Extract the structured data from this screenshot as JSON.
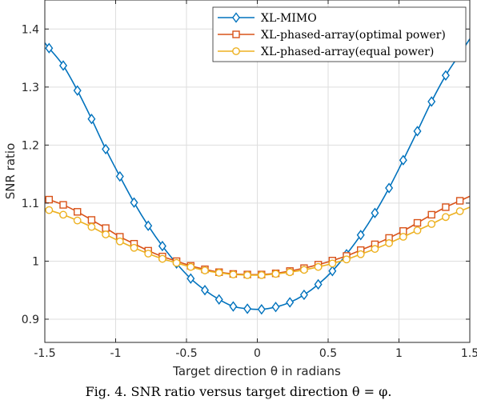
{
  "caption": "Fig. 4.  SNR ratio versus target direction θ = φ.",
  "chart_data": {
    "type": "line",
    "xlabel": "Target direction θ in radians",
    "ylabel": "SNR ratio",
    "xlim": [
      -1.5,
      1.5
    ],
    "ylim": [
      0.86,
      1.45
    ],
    "xticks": [
      -1.5,
      -1,
      -0.5,
      0,
      0.5,
      1,
      1.5
    ],
    "xtick_labels": [
      "-1.5",
      "-1",
      "-0.5",
      "0",
      "0.5",
      "1",
      "1.5"
    ],
    "yticks": [
      0.9,
      1,
      1.1,
      1.2,
      1.3,
      1.4
    ],
    "ytick_labels": [
      "0.9",
      "1",
      "1.1",
      "1.2",
      "1.3",
      "1.4"
    ],
    "grid": true,
    "legend_position": "top-right",
    "series": [
      {
        "name": "XL-MIMO",
        "color": "#0072BD",
        "marker": "diamond",
        "x": [
          -1.47,
          -1.37,
          -1.27,
          -1.17,
          -1.07,
          -0.97,
          -0.87,
          -0.77,
          -0.67,
          -0.57,
          -0.47,
          -0.37,
          -0.27,
          -0.17,
          -0.07,
          0.03,
          0.13,
          0.23,
          0.33,
          0.43,
          0.53,
          0.63,
          0.73,
          0.83,
          0.93,
          1.03,
          1.13,
          1.23,
          1.33,
          1.43
        ],
        "y": [
          1.367,
          1.337,
          1.294,
          1.245,
          1.193,
          1.146,
          1.101,
          1.061,
          1.026,
          0.996,
          0.97,
          0.95,
          0.934,
          0.922,
          0.918,
          0.917,
          0.921,
          0.929,
          0.942,
          0.96,
          0.983,
          1.012,
          1.045,
          1.083,
          1.126,
          1.174,
          1.224,
          1.275,
          1.32,
          1.357
        ]
      },
      {
        "name": "XL-phased-array(optimal power)",
        "color": "#D95319",
        "marker": "square",
        "x": [
          -1.47,
          -1.37,
          -1.27,
          -1.17,
          -1.07,
          -0.97,
          -0.87,
          -0.77,
          -0.67,
          -0.57,
          -0.47,
          -0.37,
          -0.27,
          -0.17,
          -0.07,
          0.03,
          0.13,
          0.23,
          0.33,
          0.43,
          0.53,
          0.63,
          0.73,
          0.83,
          0.93,
          1.03,
          1.13,
          1.23,
          1.33,
          1.43
        ],
        "y": [
          1.106,
          1.097,
          1.085,
          1.071,
          1.057,
          1.042,
          1.03,
          1.018,
          1.008,
          1.0,
          0.992,
          0.986,
          0.981,
          0.978,
          0.977,
          0.977,
          0.979,
          0.983,
          0.988,
          0.994,
          1.001,
          1.009,
          1.019,
          1.029,
          1.04,
          1.052,
          1.066,
          1.08,
          1.093,
          1.104
        ]
      },
      {
        "name": "XL-phased-array(equal power)",
        "color": "#EDB120",
        "marker": "circle",
        "x": [
          -1.47,
          -1.37,
          -1.27,
          -1.17,
          -1.07,
          -0.97,
          -0.87,
          -0.77,
          -0.67,
          -0.57,
          -0.47,
          -0.37,
          -0.27,
          -0.17,
          -0.07,
          0.03,
          0.13,
          0.23,
          0.33,
          0.43,
          0.53,
          0.63,
          0.73,
          0.83,
          0.93,
          1.03,
          1.13,
          1.23,
          1.33,
          1.43
        ],
        "y": [
          1.088,
          1.08,
          1.07,
          1.059,
          1.046,
          1.034,
          1.023,
          1.013,
          1.004,
          0.997,
          0.99,
          0.984,
          0.98,
          0.977,
          0.976,
          0.976,
          0.978,
          0.981,
          0.985,
          0.99,
          0.996,
          1.003,
          1.012,
          1.021,
          1.031,
          1.042,
          1.053,
          1.064,
          1.076,
          1.086
        ]
      }
    ]
  }
}
